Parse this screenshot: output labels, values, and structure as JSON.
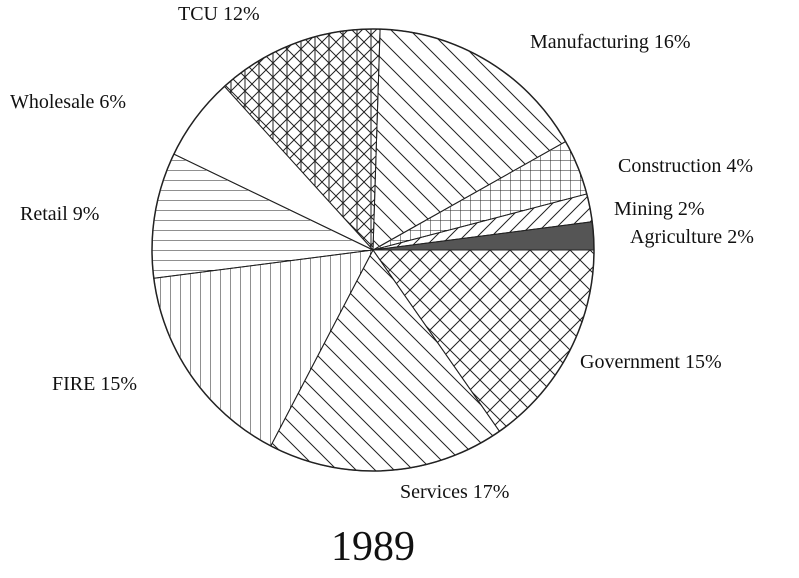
{
  "chart_data": {
    "type": "pie",
    "title": "1989",
    "categories": [
      "Agriculture",
      "Mining",
      "Construction",
      "Manufacturing",
      "TCU",
      "Wholesale",
      "Retail",
      "FIRE",
      "Services",
      "Government"
    ],
    "values": [
      2,
      2,
      4,
      16,
      12,
      6,
      9,
      15,
      17,
      15
    ],
    "value_labels": [
      "2%",
      "2%",
      "4%",
      "16%",
      "12%",
      "6%",
      "9%",
      "15%",
      "17%",
      "15%"
    ],
    "patterns": [
      "solid",
      "diagonal-up",
      "grid",
      "diagonal-down",
      "cross-grid",
      "blank",
      "horizontal",
      "vertical",
      "diagonal-down",
      "crosshatch"
    ],
    "color": "#555555"
  }
}
